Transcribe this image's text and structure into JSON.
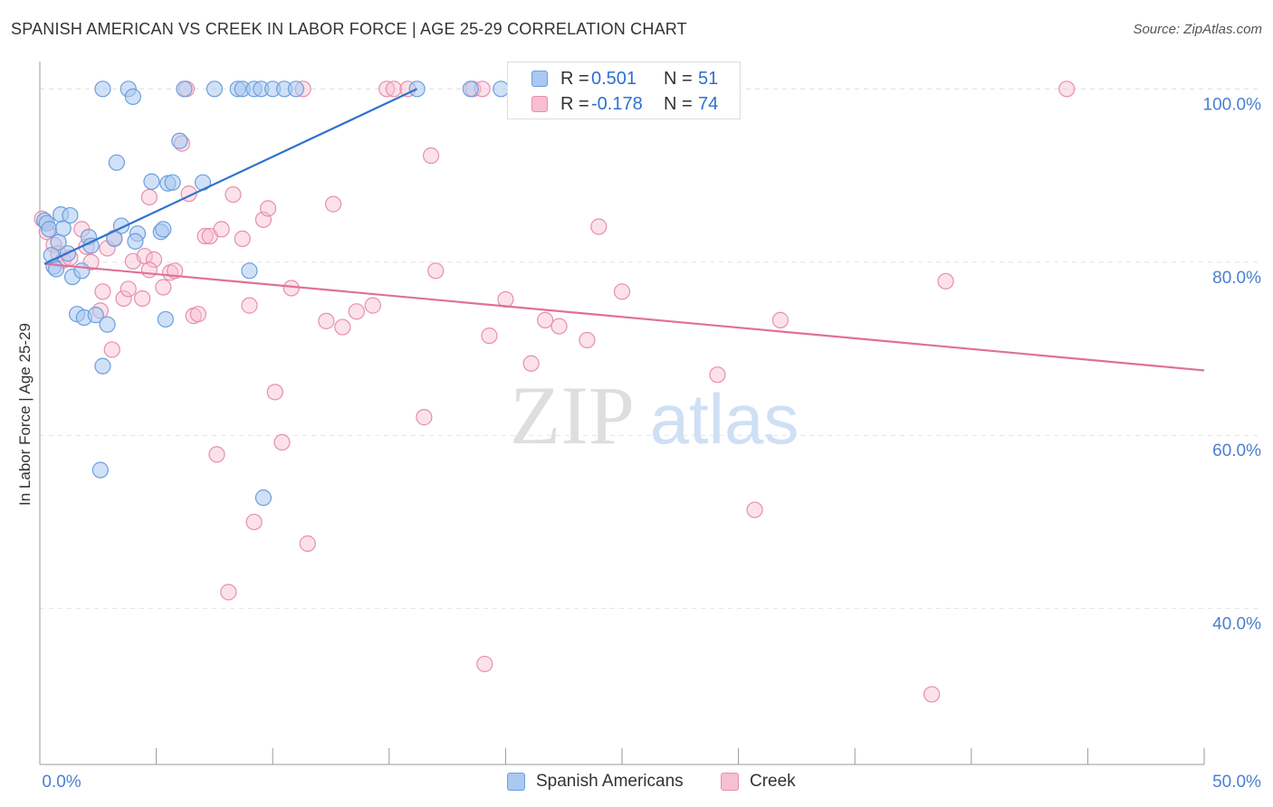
{
  "header": {
    "title": "SPANISH AMERICAN VS CREEK IN LABOR FORCE | AGE 25-29 CORRELATION CHART",
    "source": "Source: ZipAtlas.com"
  },
  "watermark": {
    "zip": "ZIP",
    "atlas": "atlas"
  },
  "legend": {
    "r_label": "R =",
    "n_label": "N =",
    "rows": [
      {
        "r": "0.501",
        "n": "51"
      },
      {
        "r": "-0.178",
        "n": "74"
      }
    ]
  },
  "chart_data": {
    "type": "scatter",
    "ylabel": "In Labor Force | Age 25-29",
    "xlim": [
      0,
      50
    ],
    "ylim": [
      22,
      104
    ],
    "x_tick_labels": [
      "0.0%",
      "50.0%"
    ],
    "y_ticks": [
      40,
      60,
      80,
      100
    ],
    "y_tick_labels": [
      "40.0%",
      "60.0%",
      "80.0%",
      "100.0%"
    ],
    "grid": true,
    "colors": {
      "spanish_fill": "#aac8f0",
      "spanish_stroke": "#6b9fdf",
      "spanish_line": "#2f72cf",
      "creek_fill": "#f7bfd0",
      "creek_stroke": "#e98eab",
      "creek_line": "#e0709a",
      "tick_label": "#4a7fd0"
    },
    "series": [
      {
        "name": "Spanish Americans",
        "trend": {
          "x": [
            0.2,
            16.2
          ],
          "y": [
            79.8,
            100.0
          ]
        },
        "points": [
          [
            0.2,
            84.8
          ],
          [
            0.3,
            84.5
          ],
          [
            0.4,
            83.8
          ],
          [
            0.6,
            79.5
          ],
          [
            0.7,
            79.2
          ],
          [
            0.5,
            80.8
          ],
          [
            0.9,
            85.5
          ],
          [
            1.0,
            83.9
          ],
          [
            1.3,
            85.4
          ],
          [
            1.4,
            78.3
          ],
          [
            1.6,
            74.0
          ],
          [
            1.8,
            79.0
          ],
          [
            1.9,
            73.6
          ],
          [
            2.1,
            82.9
          ],
          [
            2.2,
            81.9
          ],
          [
            2.4,
            73.9
          ],
          [
            2.7,
            100.0
          ],
          [
            2.9,
            72.8
          ],
          [
            3.2,
            82.7
          ],
          [
            3.3,
            91.5
          ],
          [
            3.5,
            84.2
          ],
          [
            3.8,
            100.0
          ],
          [
            4.0,
            99.1
          ],
          [
            4.2,
            83.3
          ],
          [
            4.1,
            82.4
          ],
          [
            4.8,
            89.3
          ],
          [
            5.2,
            83.5
          ],
          [
            5.3,
            83.8
          ],
          [
            5.4,
            73.4
          ],
          [
            5.5,
            89.1
          ],
          [
            5.7,
            89.2
          ],
          [
            6.0,
            94.0
          ],
          [
            6.2,
            100.0
          ],
          [
            7.0,
            89.2
          ],
          [
            7.5,
            100.0
          ],
          [
            8.5,
            100.0
          ],
          [
            8.7,
            100.0
          ],
          [
            9.0,
            79.0
          ],
          [
            9.2,
            100.0
          ],
          [
            9.5,
            100.0
          ],
          [
            10.0,
            100.0
          ],
          [
            10.5,
            100.0
          ],
          [
            11.0,
            100.0
          ],
          [
            16.2,
            100.0
          ],
          [
            18.5,
            100.0
          ],
          [
            19.8,
            100.0
          ],
          [
            2.7,
            68.0
          ],
          [
            2.6,
            56.0
          ],
          [
            9.6,
            52.8
          ],
          [
            1.2,
            81.0
          ],
          [
            0.8,
            82.3
          ]
        ]
      },
      {
        "name": "Creek",
        "trend": {
          "x": [
            0.2,
            50.0
          ],
          "y": [
            79.8,
            67.5
          ]
        },
        "points": [
          [
            0.1,
            85.0
          ],
          [
            0.3,
            83.5
          ],
          [
            0.6,
            82.0
          ],
          [
            0.8,
            81.0
          ],
          [
            1.0,
            80.2
          ],
          [
            1.3,
            80.5
          ],
          [
            1.8,
            83.8
          ],
          [
            2.0,
            81.8
          ],
          [
            2.2,
            80.0
          ],
          [
            2.6,
            74.4
          ],
          [
            2.7,
            76.6
          ],
          [
            2.9,
            81.6
          ],
          [
            3.1,
            69.9
          ],
          [
            3.2,
            82.8
          ],
          [
            3.6,
            75.8
          ],
          [
            3.8,
            76.9
          ],
          [
            4.0,
            80.1
          ],
          [
            4.4,
            75.8
          ],
          [
            4.5,
            80.7
          ],
          [
            4.7,
            87.5
          ],
          [
            4.9,
            80.3
          ],
          [
            5.3,
            77.1
          ],
          [
            5.6,
            78.8
          ],
          [
            5.8,
            79.0
          ],
          [
            6.1,
            93.7
          ],
          [
            6.3,
            100.0
          ],
          [
            6.4,
            87.9
          ],
          [
            6.6,
            73.8
          ],
          [
            6.8,
            74.0
          ],
          [
            7.1,
            83.0
          ],
          [
            7.3,
            83.0
          ],
          [
            7.6,
            57.8
          ],
          [
            7.8,
            83.8
          ],
          [
            8.1,
            41.9
          ],
          [
            8.3,
            87.8
          ],
          [
            8.7,
            82.7
          ],
          [
            9.0,
            75.0
          ],
          [
            9.2,
            50.0
          ],
          [
            9.6,
            84.9
          ],
          [
            9.8,
            86.2
          ],
          [
            10.1,
            65.0
          ],
          [
            10.4,
            59.2
          ],
          [
            10.8,
            77.0
          ],
          [
            11.3,
            100.0
          ],
          [
            11.5,
            47.5
          ],
          [
            12.3,
            73.2
          ],
          [
            12.6,
            86.7
          ],
          [
            13.0,
            72.5
          ],
          [
            13.6,
            74.3
          ],
          [
            14.3,
            75.0
          ],
          [
            14.9,
            100.0
          ],
          [
            15.2,
            100.0
          ],
          [
            15.8,
            100.0
          ],
          [
            16.5,
            62.1
          ],
          [
            16.8,
            92.3
          ],
          [
            17.0,
            79.0
          ],
          [
            18.6,
            100.0
          ],
          [
            19.1,
            33.6
          ],
          [
            19.0,
            100.0
          ],
          [
            19.3,
            71.5
          ],
          [
            20.0,
            75.7
          ],
          [
            21.1,
            68.3
          ],
          [
            21.7,
            73.3
          ],
          [
            22.3,
            72.6
          ],
          [
            23.5,
            71.0
          ],
          [
            24.0,
            84.1
          ],
          [
            25.0,
            76.6
          ],
          [
            29.1,
            67.0
          ],
          [
            30.7,
            51.4
          ],
          [
            31.8,
            73.3
          ],
          [
            38.3,
            30.1
          ],
          [
            38.9,
            77.8
          ],
          [
            44.1,
            100.0
          ],
          [
            4.7,
            79.1
          ]
        ]
      }
    ]
  }
}
